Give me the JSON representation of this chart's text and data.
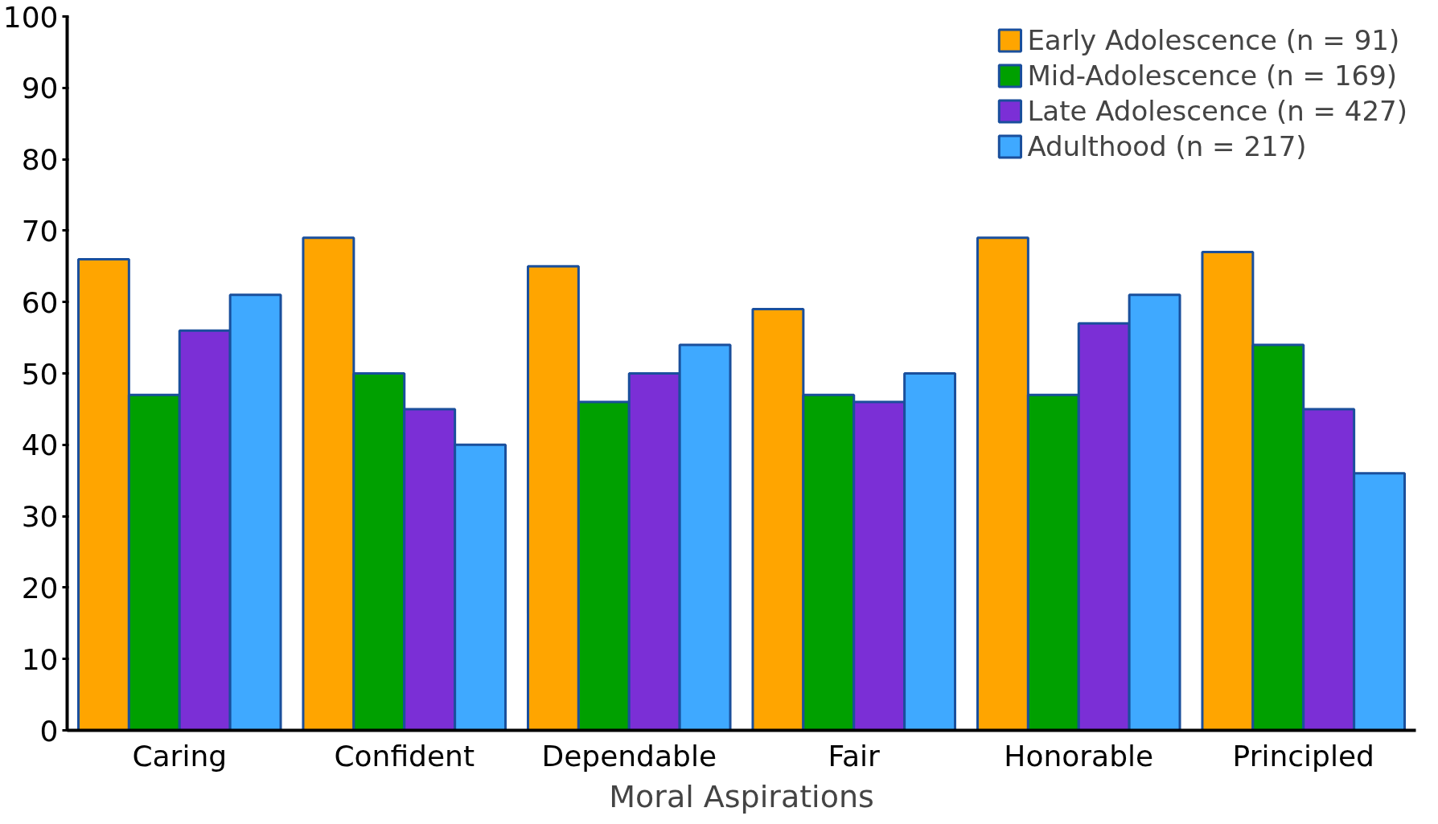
{
  "chart_data": {
    "type": "bar",
    "xlabel": "Moral Aspirations",
    "categories": [
      "Caring",
      "Confident",
      "Dependable",
      "Fair",
      "Honorable",
      "Principled"
    ],
    "series": [
      {
        "name": "Early Adolescence (n = 91)",
        "color": "#ffa500",
        "values": [
          66,
          69,
          65,
          59,
          69,
          67
        ]
      },
      {
        "name": "Mid-Adolescence (n = 169)",
        "color": "#00a000",
        "values": [
          47,
          50,
          46,
          47,
          47,
          54
        ]
      },
      {
        "name": "Late Adolescence (n = 427)",
        "color": "#7b2fd6",
        "values": [
          56,
          45,
          50,
          46,
          57,
          45
        ]
      },
      {
        "name": "Adulthood (n = 217)",
        "color": "#3fa9ff",
        "values": [
          61,
          40,
          54,
          50,
          61,
          36
        ]
      }
    ],
    "ylim": [
      0,
      100
    ],
    "yticks": [
      0,
      10,
      20,
      30,
      40,
      50,
      60,
      70,
      80,
      90,
      100
    ],
    "grid": false,
    "legend": "top right"
  }
}
